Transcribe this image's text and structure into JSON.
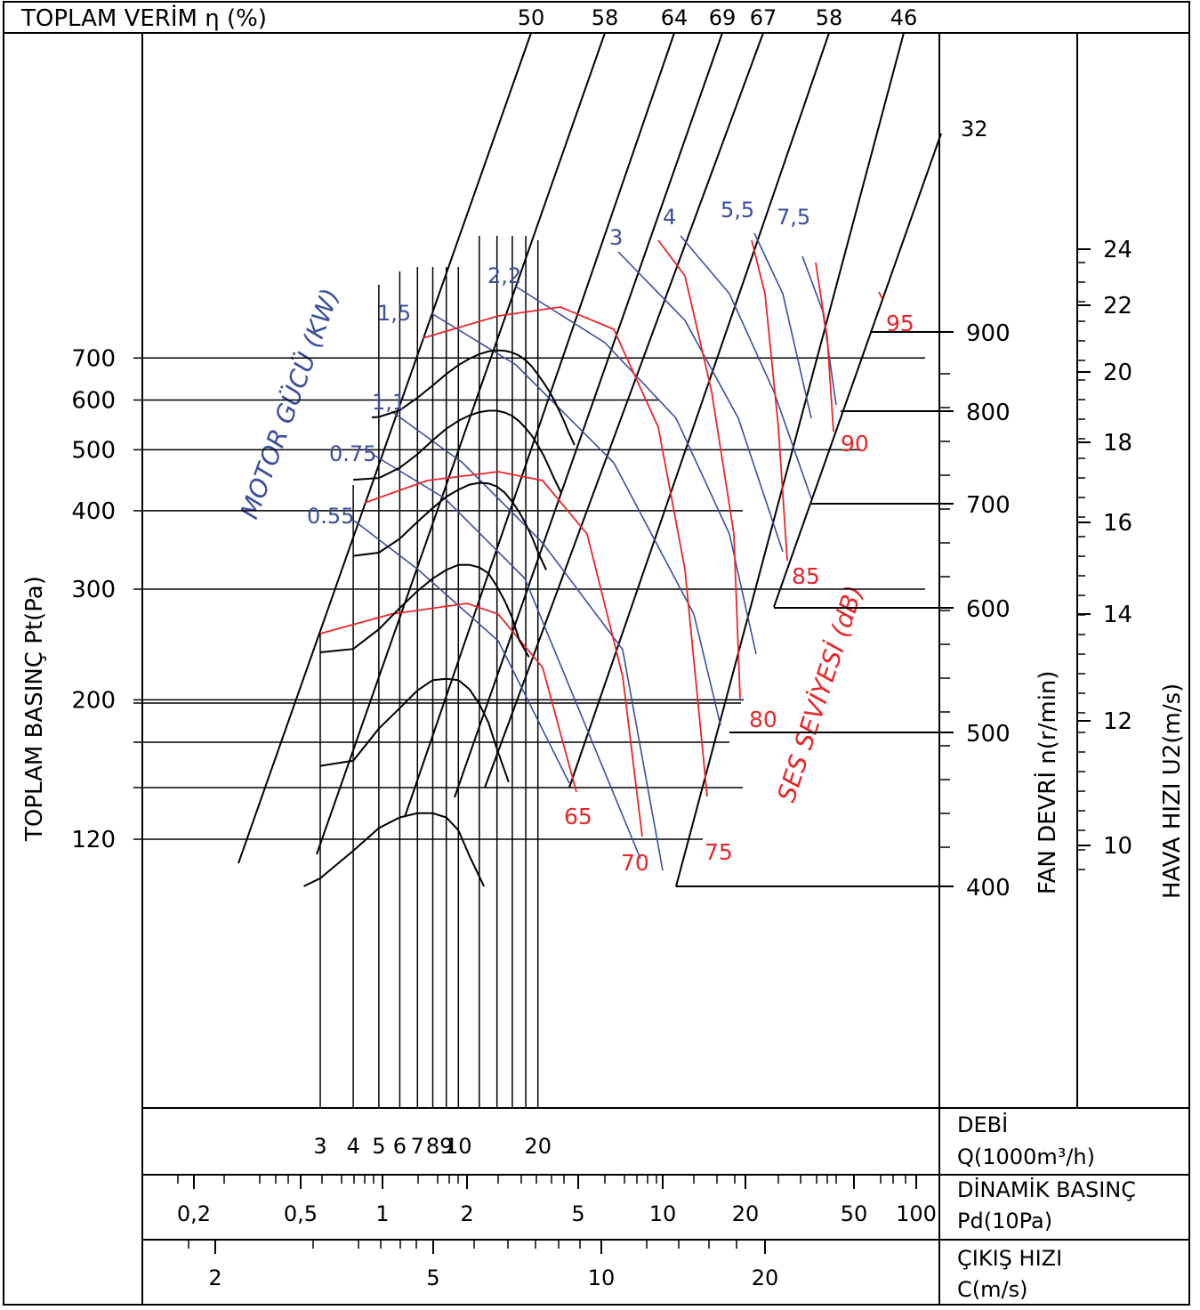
{
  "colors": {
    "frame": "#000000",
    "sound": "#e8262a",
    "power": "#3b4e9c"
  },
  "chart_data": {
    "type": "line",
    "title": "TOPLAM VERİM  η (%)",
    "ylabel": "TOPLAM BASINÇ Pt(Pa)",
    "y_scale": "log",
    "ylim": [
      95,
      1100
    ],
    "pressure_ticks": [
      "120",
      "200",
      "300",
      "400",
      "500",
      "600",
      "700"
    ],
    "efficiency_ticks": [
      "50",
      "58",
      "64",
      "69",
      "67",
      "58",
      "46",
      "32"
    ],
    "fan_speed_label": "FAN DEVRİ n(r/min)",
    "fan_speed_ticks": [
      "400",
      "500",
      "600",
      "700",
      "800",
      "900"
    ],
    "tip_speed_label": "HAVA HIZI U2(m/s)",
    "tip_speed_ticks": [
      "10",
      "12",
      "14",
      "16",
      "18",
      "20",
      "22",
      "24"
    ],
    "flow_label": [
      "DEBİ",
      "Q(1000m³/h)"
    ],
    "flow_ticks": [
      "3",
      "4",
      "5",
      "6",
      "7",
      "8",
      "9",
      "10",
      "20"
    ],
    "dynamic_label": [
      "DİNAMİK BASINÇ",
      "Pd(10Pa)"
    ],
    "dynamic_ticks": [
      "0,2",
      "0,5",
      "1",
      "2",
      "5",
      "10",
      "20",
      "50",
      "100"
    ],
    "outlet_label": [
      "ÇIKIŞ HIZI",
      "C(m/s)"
    ],
    "outlet_ticks": [
      "2",
      "5",
      "10",
      "20"
    ],
    "power_label": "MOTOR GÜCÜ (KW)",
    "power_ticks": [
      "0.55",
      "0.75",
      "1,1",
      "1,5",
      "2,2",
      "3",
      "4",
      "5,5",
      "7,5"
    ],
    "sound_label": "SES SEVİYESİ (dB)",
    "sound_ticks": [
      "65",
      "70",
      "75",
      "80",
      "85",
      "90",
      "95"
    ],
    "series": [
      {
        "n": 400,
        "x": [
          2.6,
          3,
          4,
          5,
          6,
          7,
          8,
          9,
          10,
          11,
          12.5
        ],
        "y": [
          101,
          104,
          115,
          125,
          130,
          132,
          132,
          130,
          124,
          113,
          101
        ]
      },
      {
        "n": 500,
        "x": [
          3,
          4,
          5,
          6,
          7,
          8,
          9,
          10,
          11,
          12,
          13,
          14,
          15.5
        ],
        "y": [
          157,
          160,
          180,
          194,
          207,
          215,
          216,
          215,
          208,
          197,
          184,
          167,
          148
        ]
      },
      {
        "n": 600,
        "x": [
          3,
          4,
          5,
          6,
          7,
          8,
          9,
          10,
          11,
          12,
          13,
          14,
          15,
          16,
          17,
          18.5
        ],
        "y": [
          238,
          241,
          259,
          280,
          298,
          312,
          322,
          328,
          328,
          325,
          318,
          303,
          287,
          270,
          249,
          234
        ]
      },
      {
        "n": 700,
        "x": [
          4,
          5,
          6,
          7,
          8,
          9,
          10,
          11,
          12,
          13,
          14,
          15,
          16,
          17,
          18,
          19,
          20,
          21.5
        ],
        "y": [
          339,
          343,
          361,
          384,
          404,
          421,
          432,
          440,
          443,
          442,
          437,
          427,
          413,
          398,
          381,
          363,
          344,
          322
        ]
      },
      {
        "n": 800,
        "x": [
          4,
          5,
          6,
          7,
          8,
          9,
          10,
          11,
          12,
          13,
          14,
          15,
          16,
          17,
          18,
          19,
          20,
          21,
          22,
          23,
          24.5
        ],
        "y": [
          448,
          451,
          468,
          492,
          518,
          540,
          556,
          567,
          574,
          577,
          577,
          573,
          566,
          555,
          541,
          526,
          508,
          490,
          470,
          451,
          427
        ]
      },
      {
        "n": 900,
        "x": [
          4.7,
          5,
          6,
          7,
          8,
          9,
          10,
          11,
          12,
          13,
          14,
          15,
          16,
          17,
          18,
          19,
          20,
          21,
          22,
          23,
          24,
          25,
          26,
          27.5
        ],
        "y": [
          563,
          564,
          578,
          605,
          633,
          660,
          682,
          698,
          710,
          717,
          720,
          719,
          714,
          706,
          694,
          678,
          659,
          640,
          621,
          601,
          579,
          558,
          536,
          509
        ]
      }
    ]
  }
}
